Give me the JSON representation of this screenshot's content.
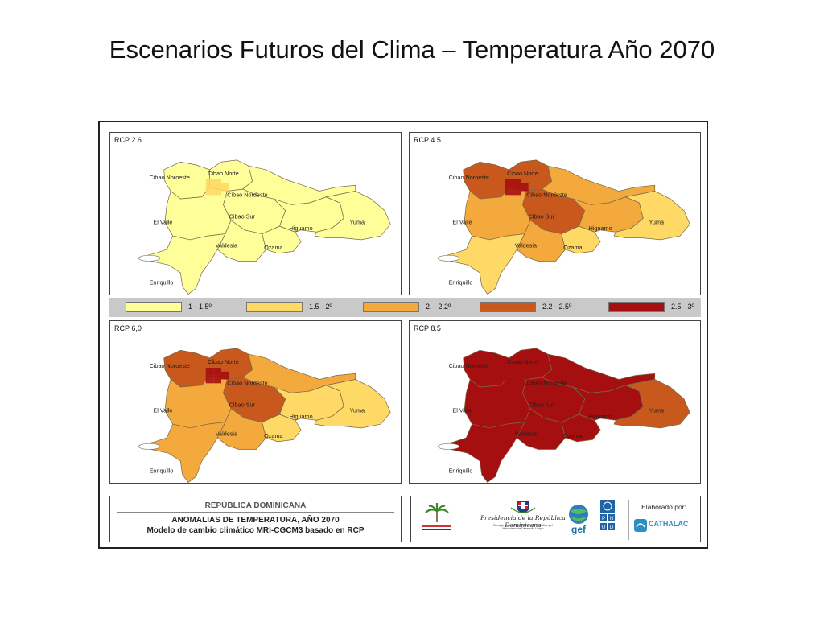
{
  "slide": {
    "title": "Escenarios Futuros del Clima – Temperatura Año 2070"
  },
  "colors": {
    "c1": "#ffff99",
    "c2": "#ffd966",
    "c3": "#f4a93c",
    "c4": "#c8581c",
    "c5": "#a50f0f",
    "panel_border": "#444444",
    "legend_bg": "#c9c9c9"
  },
  "legend": [
    {
      "label": "1 - 1.5º",
      "color": "#ffff99"
    },
    {
      "label": "1.5 - 2º",
      "color": "#ffd966"
    },
    {
      "label": "2. - 2.2º",
      "color": "#f4a93c"
    },
    {
      "label": "2.2 - 2.5º",
      "color": "#c8581c"
    },
    {
      "label": "2.5 - 3º",
      "color": "#a50f0f"
    }
  ],
  "region_names": {
    "cibao_noroeste": "Cibao Noroeste",
    "cibao_norte": "Cibao Norte",
    "cibao_nordeste": "Cibao Nordeste",
    "cibao_sur": "Cibao Sur",
    "el_valle": "El Valle",
    "higuamo": "Higuamo",
    "valdesia": "Valdesia",
    "ozama": "Ozama",
    "yuma": "Yuma",
    "enriquillo": "Enriquillo"
  },
  "scenarios": [
    {
      "label": "RCP 2.6",
      "fills": {
        "cibao_noroeste": "#ffff99",
        "cibao_norte": "#ffff99",
        "cibao_nordeste": "#ffff99",
        "cibao_sur": "#ffff99",
        "el_valle": "#ffff99",
        "higuamo": "#ffff99",
        "valdesia": "#ffff99",
        "ozama": "#ffff99",
        "yuma": "#ffff99",
        "enriquillo": "#ffff99"
      },
      "hotspot": "#ffd966"
    },
    {
      "label": "RCP 4.5",
      "fills": {
        "cibao_noroeste": "#c8581c",
        "cibao_norte": "#c8581c",
        "cibao_nordeste": "#f4a93c",
        "cibao_sur": "#c8581c",
        "el_valle": "#f4a93c",
        "higuamo": "#f4a93c",
        "valdesia": "#f4a93c",
        "ozama": "#ffd966",
        "yuma": "#ffd966",
        "enriquillo": "#ffd966"
      },
      "hotspot": "#a50f0f"
    },
    {
      "label": "RCP 6,0",
      "fills": {
        "cibao_noroeste": "#c8581c",
        "cibao_norte": "#c8581c",
        "cibao_nordeste": "#f4a93c",
        "cibao_sur": "#c8581c",
        "el_valle": "#f4a93c",
        "higuamo": "#ffd966",
        "valdesia": "#f4a93c",
        "ozama": "#ffd966",
        "yuma": "#ffd966",
        "enriquillo": "#f4a93c"
      },
      "hotspot": "#a50f0f"
    },
    {
      "label": "RCP 8.5",
      "fills": {
        "cibao_noroeste": "#a50f0f",
        "cibao_norte": "#a50f0f",
        "cibao_nordeste": "#a50f0f",
        "cibao_sur": "#a50f0f",
        "el_valle": "#a50f0f",
        "higuamo": "#a50f0f",
        "valdesia": "#a50f0f",
        "ozama": "#a50f0f",
        "yuma": "#c8581c",
        "enriquillo": "#a50f0f"
      },
      "hotspot": "#a50f0f"
    }
  ],
  "info": {
    "country": "REPÚBLICA DOMINICANA",
    "line1": "ANOMALIAS DE TEMPERATURA, AÑO 2070",
    "line2": "Modelo de cambio climático MRI-CGCM3 basado en RCP"
  },
  "logos": {
    "ministry": "MINISTERIO DE MEDIO AMBIENTE Y RECURSOS NATURALES",
    "presidencia": "Presidencia de la República Dominicana",
    "consejo": "Consejo Nacional para el Cambio Climático y el Mecanismo de Desarrollo Limpio",
    "gef": "gef",
    "undp": "PNUD",
    "credit": "Elaborado por:",
    "cathalac": "CATHALAC"
  }
}
